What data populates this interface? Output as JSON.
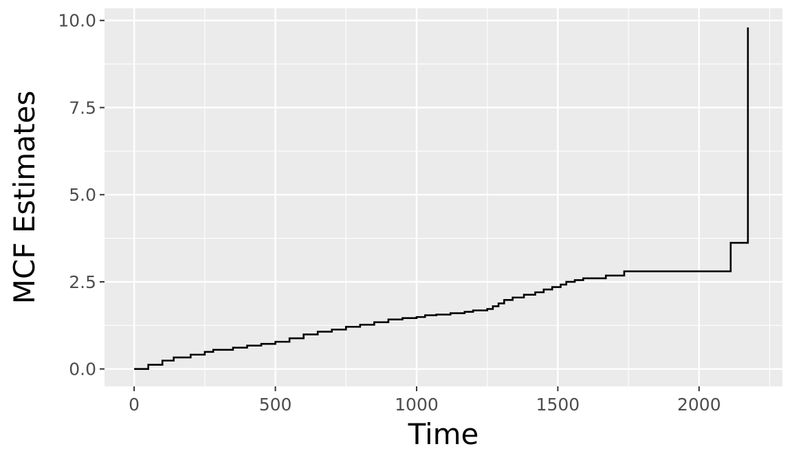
{
  "chart_data": {
    "type": "line",
    "line_style": "step",
    "title": "",
    "xlabel": "Time",
    "ylabel": "MCF Estimates",
    "xlim": [
      -105,
      2295
    ],
    "ylim": [
      -0.5,
      10.35
    ],
    "x_ticks": [
      0,
      500,
      1000,
      1500,
      2000
    ],
    "x_tick_labels": [
      "0",
      "500",
      "1000",
      "1500",
      "2000"
    ],
    "y_ticks": [
      0,
      2.5,
      5,
      7.5,
      10
    ],
    "y_tick_labels": [
      "0.0",
      "2.5",
      "5.0",
      "7.5",
      "10.0"
    ],
    "grid": true,
    "legend": "none",
    "colors": {
      "panel": "#ebebeb",
      "grid": "#ffffff",
      "line": "#000000",
      "tick_text": "#4d4d4d",
      "axis_title": "#000000"
    },
    "series": [
      {
        "x": [
          0,
          50,
          100,
          140,
          200,
          250,
          280,
          350,
          400,
          450,
          500,
          550,
          600,
          650,
          700,
          750,
          800,
          850,
          900,
          950,
          1000,
          1030,
          1070,
          1120,
          1170,
          1200,
          1250,
          1270,
          1290,
          1310,
          1340,
          1380,
          1420,
          1450,
          1480,
          1510,
          1530,
          1560,
          1590,
          1670,
          1735,
          2112,
          2170,
          2173
        ],
        "y": [
          0.0,
          0.12,
          0.24,
          0.33,
          0.41,
          0.49,
          0.55,
          0.61,
          0.67,
          0.72,
          0.78,
          0.88,
          0.99,
          1.07,
          1.13,
          1.21,
          1.27,
          1.34,
          1.42,
          1.46,
          1.49,
          1.54,
          1.56,
          1.6,
          1.64,
          1.68,
          1.72,
          1.8,
          1.88,
          1.98,
          2.05,
          2.13,
          2.2,
          2.28,
          2.35,
          2.42,
          2.5,
          2.55,
          2.6,
          2.68,
          2.8,
          3.62,
          3.62,
          9.8
        ]
      }
    ]
  }
}
